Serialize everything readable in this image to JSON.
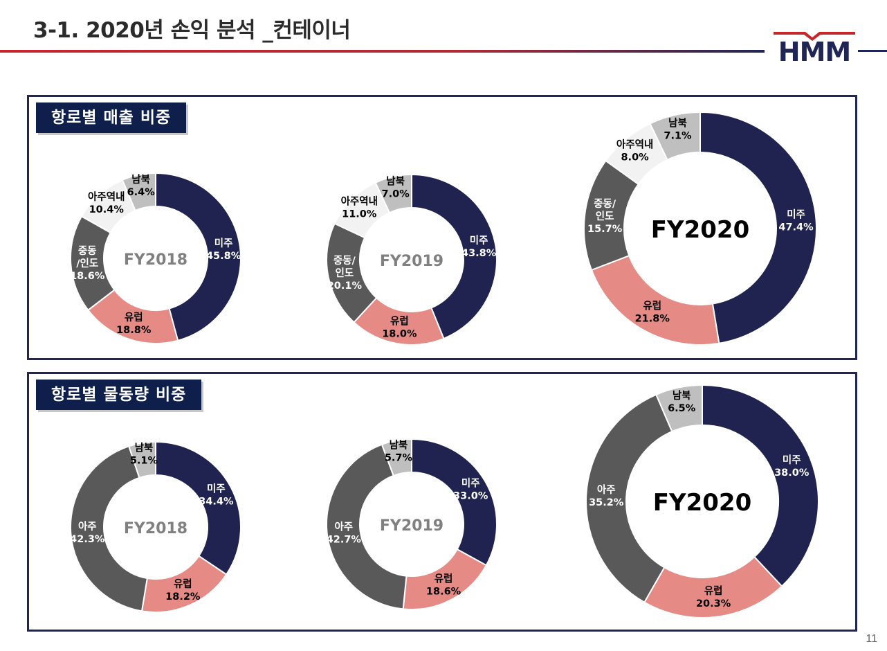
{
  "page": {
    "title": "3-1. 2020년 손익 분석 _컨테이너",
    "page_number": "11",
    "logo_text": "HMM"
  },
  "panels": {
    "revenue_label": "항로별 매출 비중",
    "volume_label": "항로별 물동량 비중"
  },
  "colors": {
    "navy": "#20234f",
    "pink": "#e58a84",
    "dark_gray": "#595959",
    "light": "#f2f2f2",
    "gray": "#bfbfbf",
    "brand_red": "#c8262d",
    "panel_border": "#1f2555"
  },
  "chart_data": [
    {
      "type": "pie",
      "group": "revenue",
      "center_label": "FY2018",
      "slices": [
        {
          "name": "미주",
          "value": 45.8,
          "label": "45.8%",
          "color_key": "navy"
        },
        {
          "name": "유럽",
          "value": 18.8,
          "label": "18.8%",
          "color_key": "pink"
        },
        {
          "name": "중동\n/인도",
          "value": 18.6,
          "label": "18.6%",
          "color_key": "dark_gray"
        },
        {
          "name": "아주역내",
          "value": 10.4,
          "label": "10.4%",
          "color_key": "light"
        },
        {
          "name": "남북",
          "value": 6.4,
          "label": "6.4%",
          "color_key": "gray"
        }
      ]
    },
    {
      "type": "pie",
      "group": "revenue",
      "center_label": "FY2019",
      "slices": [
        {
          "name": "미주",
          "value": 43.8,
          "label": "43.8%",
          "color_key": "navy"
        },
        {
          "name": "유럽",
          "value": 18.0,
          "label": "18.0%",
          "color_key": "pink"
        },
        {
          "name": "중동/\n인도",
          "value": 20.1,
          "label": "20.1%",
          "color_key": "dark_gray"
        },
        {
          "name": "아주역내",
          "value": 11.0,
          "label": "11.0%",
          "color_key": "light"
        },
        {
          "name": "남북",
          "value": 7.0,
          "label": "7.0%",
          "color_key": "gray"
        }
      ]
    },
    {
      "type": "pie",
      "group": "revenue",
      "center_label": "FY2020",
      "slices": [
        {
          "name": "미주",
          "value": 47.4,
          "label": "47.4%",
          "color_key": "navy"
        },
        {
          "name": "유럽",
          "value": 21.8,
          "label": "21.8%",
          "color_key": "pink"
        },
        {
          "name": "중동/\n인도",
          "value": 15.7,
          "label": "15.7%",
          "color_key": "dark_gray"
        },
        {
          "name": "아주역내",
          "value": 8.0,
          "label": "8.0%",
          "color_key": "light"
        },
        {
          "name": "남북",
          "value": 7.1,
          "label": "7.1%",
          "color_key": "gray"
        }
      ]
    },
    {
      "type": "pie",
      "group": "volume",
      "center_label": "FY2018",
      "slices": [
        {
          "name": "미주",
          "value": 34.4,
          "label": "34.4%",
          "color_key": "navy"
        },
        {
          "name": "유럽",
          "value": 18.2,
          "label": "18.2%",
          "color_key": "pink"
        },
        {
          "name": "아주",
          "value": 42.3,
          "label": "42.3%",
          "color_key": "dark_gray"
        },
        {
          "name": "남북",
          "value": 5.1,
          "label": "5.1%",
          "color_key": "gray"
        }
      ]
    },
    {
      "type": "pie",
      "group": "volume",
      "center_label": "FY2019",
      "slices": [
        {
          "name": "미주",
          "value": 33.0,
          "label": "33.0%",
          "color_key": "navy"
        },
        {
          "name": "유럽",
          "value": 18.6,
          "label": "18.6%",
          "color_key": "pink"
        },
        {
          "name": "아주",
          "value": 42.7,
          "label": "42.7%",
          "color_key": "dark_gray"
        },
        {
          "name": "남북",
          "value": 5.7,
          "label": "5.7%",
          "color_key": "gray"
        }
      ]
    },
    {
      "type": "pie",
      "group": "volume",
      "center_label": "FY2020",
      "slices": [
        {
          "name": "미주",
          "value": 38.0,
          "label": "38.0%",
          "color_key": "navy"
        },
        {
          "name": "유럽",
          "value": 20.3,
          "label": "20.3%",
          "color_key": "pink"
        },
        {
          "name": "아주",
          "value": 35.2,
          "label": "35.2%",
          "color_key": "dark_gray"
        },
        {
          "name": "남북",
          "value": 6.5,
          "label": "6.5%",
          "color_key": "gray"
        }
      ]
    }
  ]
}
